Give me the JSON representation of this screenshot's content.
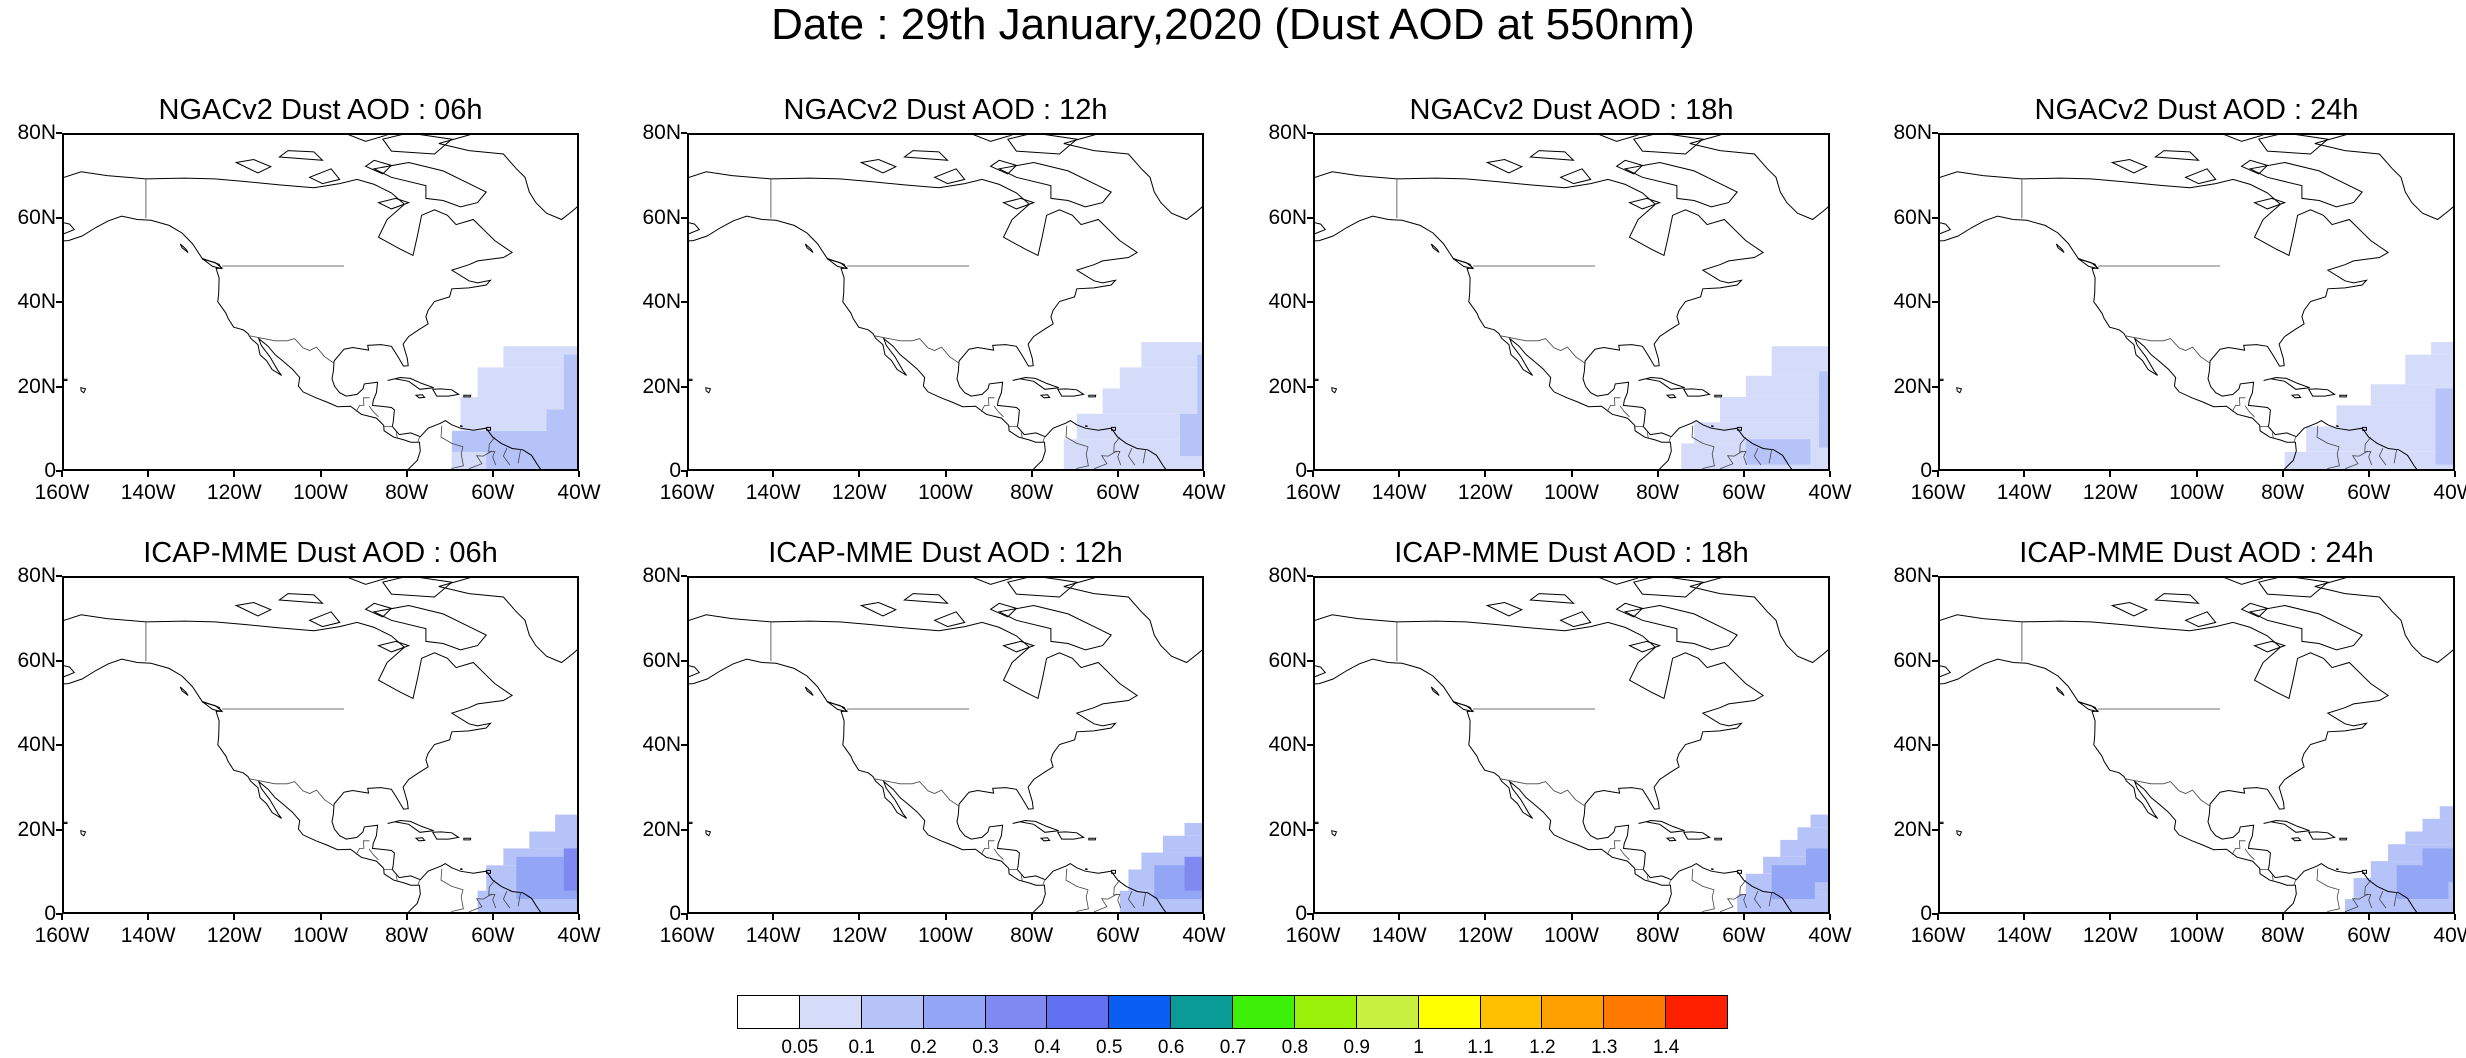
{
  "title": "Date : 29th January,2020 (Dust AOD at 550nm)",
  "panels": [
    {
      "title": "NGACv2 Dust AOD : 06h",
      "model": "NGACv2",
      "hour": "06h"
    },
    {
      "title": "NGACv2 Dust AOD : 12h",
      "model": "NGACv2",
      "hour": "12h"
    },
    {
      "title": "NGACv2 Dust AOD : 18h",
      "model": "NGACv2",
      "hour": "18h"
    },
    {
      "title": "NGACv2 Dust AOD : 24h",
      "model": "NGACv2",
      "hour": "24h"
    },
    {
      "title": "ICAP-MME Dust AOD : 06h",
      "model": "ICAP-MME",
      "hour": "06h"
    },
    {
      "title": "ICAP-MME Dust AOD : 12h",
      "model": "ICAP-MME",
      "hour": "12h"
    },
    {
      "title": "ICAP-MME Dust AOD : 18h",
      "model": "ICAP-MME",
      "hour": "18h"
    },
    {
      "title": "ICAP-MME Dust AOD : 24h",
      "model": "ICAP-MME",
      "hour": "24h"
    }
  ],
  "map": {
    "lon_range": [
      -160,
      -40
    ],
    "lat_range": [
      0,
      80
    ],
    "lat_ticks": [
      "80N",
      "60N",
      "40N",
      "20N",
      "0"
    ],
    "lon_ticks": [
      "160W",
      "140W",
      "120W",
      "100W",
      "80W",
      "60W",
      "40W"
    ]
  },
  "colorbar": {
    "colors": [
      "#ffffff",
      "#d5dcfa",
      "#b6c3f8",
      "#93a6f6",
      "#8088f2",
      "#6070f0",
      "#0a5ff2",
      "#0a9b96",
      "#3cf00a",
      "#9bf00a",
      "#c8f040",
      "#ffff00",
      "#ffc000",
      "#ffa000",
      "#ff7800",
      "#ff2000"
    ],
    "labels": [
      "0.05",
      "0.1",
      "0.2",
      "0.3",
      "0.4",
      "0.5",
      "0.6",
      "0.7",
      "0.8",
      "0.9",
      "1",
      "1.1",
      "1.2",
      "1.3",
      "1.4"
    ]
  }
}
